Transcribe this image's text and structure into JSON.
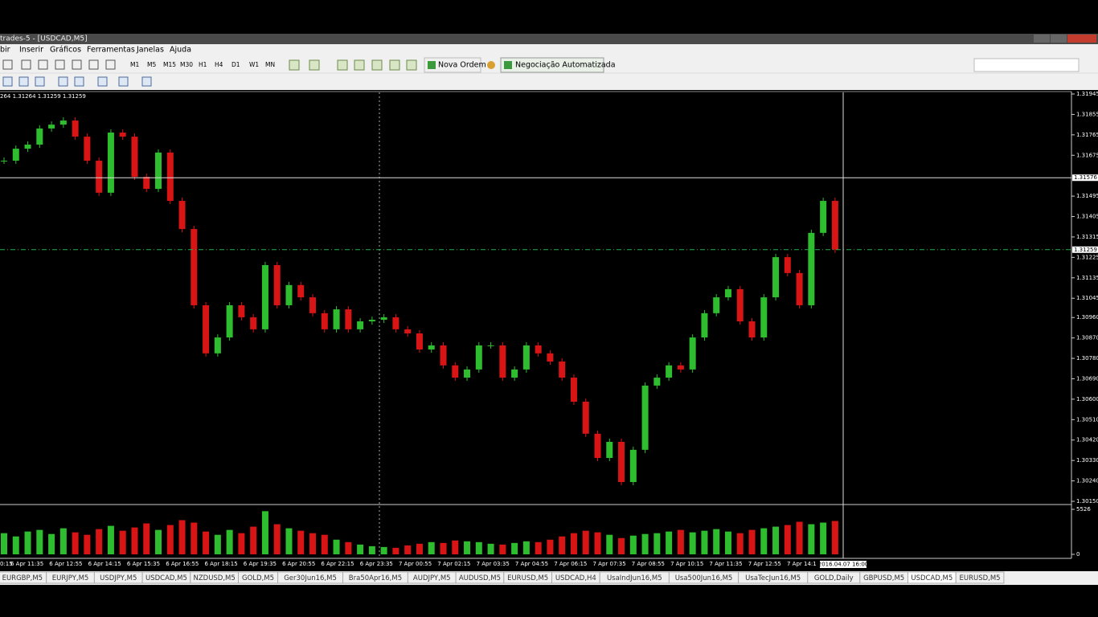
{
  "window": {
    "title": "trades-5 - [USDCAD,M5]"
  },
  "menu": [
    "bir",
    "Inserir",
    "Gráficos",
    "Ferramentas",
    "Janelas",
    "Ajuda"
  ],
  "toolbar": {
    "timeframes": [
      "M1",
      "M5",
      "M15",
      "M30",
      "H1",
      "H4",
      "D1",
      "W1",
      "MN"
    ],
    "new_order": "Nova Ordem",
    "auto_trading": "Negociação Automatizada"
  },
  "chart_data": {
    "type": "candlestick",
    "info": "264 1.31264 1.31259 1.31259",
    "up_color": "#2ebd2e",
    "down_color": "#d81414",
    "values": [
      1.31651,
      1.31704,
      1.31722,
      1.31793,
      1.3181,
      1.31828,
      1.31757,
      1.31651,
      1.3151,
      1.31775,
      1.31757,
      1.3158,
      1.31527,
      1.31687,
      1.31474,
      1.3135,
      1.31014,
      1.30802,
      1.30872,
      1.31014,
      1.30961,
      1.30908,
      1.31191,
      1.31014,
      1.31103,
      1.31049,
      1.30979,
      1.30908,
      1.30996,
      1.30908,
      1.30943,
      1.3095,
      1.30961,
      1.30908,
      1.3089,
      1.30819,
      1.30837,
      1.30749,
      1.30695,
      1.30731,
      1.30837,
      1.30837,
      1.30695,
      1.30731,
      1.30837,
      1.30802,
      1.30766,
      1.30695,
      1.30589,
      1.30448,
      1.30341,
      1.30412,
      1.30235,
      1.30377,
      1.3066,
      1.30695,
      1.30749,
      1.30731,
      1.30872,
      1.30979,
      1.31049,
      1.31085,
      1.30943,
      1.30872,
      1.31049,
      1.31226,
      1.31156,
      1.31014,
      1.31333,
      1.31474,
      1.31259
    ],
    "volumes": [
      2600,
      2200,
      2800,
      3000,
      2500,
      3200,
      2700,
      2400,
      3100,
      3500,
      2900,
      3300,
      3800,
      3000,
      3600,
      4200,
      3900,
      2800,
      2400,
      3000,
      2600,
      3400,
      5300,
      3700,
      3200,
      2900,
      2600,
      2400,
      1800,
      1500,
      1200,
      1000,
      900,
      800,
      1100,
      1300,
      1500,
      1400,
      1700,
      1600,
      1500,
      1300,
      1200,
      1400,
      1600,
      1500,
      1800,
      2200,
      2600,
      2900,
      2700,
      2400,
      2000,
      2300,
      2500,
      2600,
      2800,
      3000,
      2700,
      2900,
      3100,
      2800,
      2600,
      3000,
      3200,
      3400,
      3600,
      4000,
      3700,
      3900,
      4100
    ],
    "ylim": [
      1.3015,
      1.31945
    ],
    "yticks": [
      1.31945,
      1.31855,
      1.31765,
      1.31675,
      1.31495,
      1.31405,
      1.31315,
      1.31225,
      1.31135,
      1.31045,
      {
        "value": 1.3096,
        "label": "1.30960"
      },
      {
        "value": 1.3087,
        "label": "1.30870"
      },
      {
        "value": 1.3078,
        "label": "1.30780"
      },
      {
        "value": 1.3069,
        "label": "1.30690"
      },
      {
        "value": 1.306,
        "label": "1.30600"
      },
      {
        "value": 1.3051,
        "label": "1.30510"
      },
      {
        "value": 1.3042,
        "label": "1.30420"
      },
      {
        "value": 1.3033,
        "label": "1.30330"
      },
      {
        "value": 1.3024,
        "label": "1.30240"
      },
      {
        "value": 1.3015,
        "label": "1.30150"
      }
    ],
    "y2lim": [
      0,
      5526
    ],
    "y2ticks": [
      5526,
      0
    ],
    "bid": 1.31259,
    "bid_color": "#22b04a",
    "crosshair": {
      "price": 1.31576,
      "time": "2016.04.07 16:00"
    },
    "x_labels": [
      "0:15",
      "6 Apr 11:35",
      "6 Apr 12:55",
      "6 Apr 14:15",
      "6 Apr 15:35",
      "6 Apr 16:55",
      "6 Apr 18:15",
      "6 Apr 19:35",
      "6 Apr 20:55",
      "6 Apr 22:15",
      "6 Apr 23:35",
      "7 Apr 00:55",
      "7 Apr 02:15",
      "7 Apr 03:35",
      "7 Apr 04:55",
      "7 Apr 06:15",
      "7 Apr 07:35",
      "7 Apr 08:55",
      "7 Apr 10:15",
      "7 Apr 11:35",
      "7 Apr 12:55",
      "7 Apr 14:1"
    ],
    "grid": false
  },
  "tabs": [
    "EURGBP,M5",
    "EURJPY,M5",
    "USDJPY,M5",
    "USDCAD,M5",
    "NZDUSD,M5",
    "GOLD,M5",
    "Ger30Jun16,M5",
    "Bra50Apr16,M5",
    "AUDJPY,M5",
    "AUDUSD,M5",
    "EURUSD,M5",
    "USDCAD,H4",
    "UsaIndJun16,M5",
    "Usa500Jun16,M5",
    "UsaTecJun16,M5",
    "GOLD,Daily",
    "GBPUSD,M5",
    "USDCAD,M5",
    "EURUSD,M5"
  ],
  "active_tab": 17
}
